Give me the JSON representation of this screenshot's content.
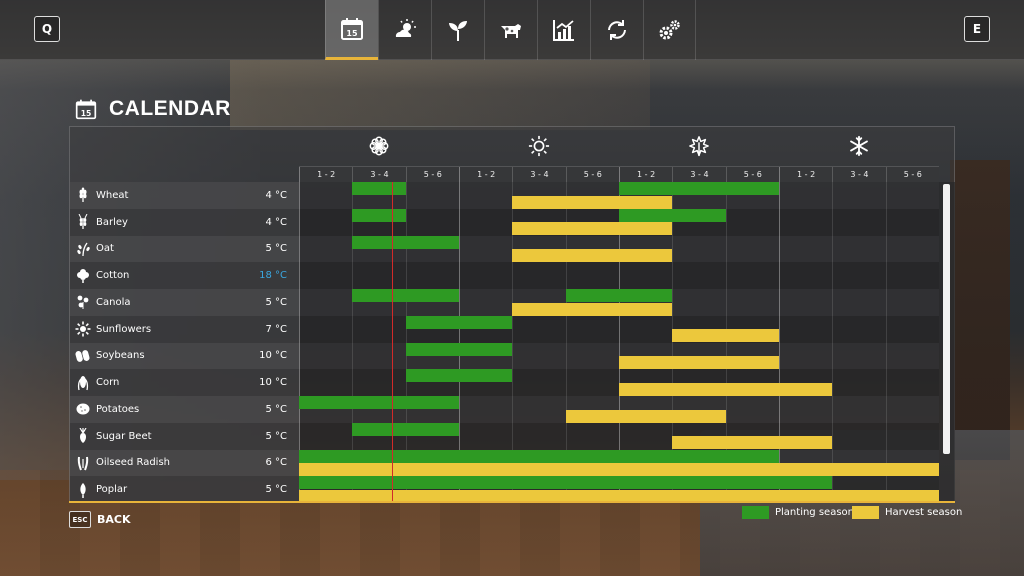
{
  "nav": {
    "left_key": "Q",
    "right_key": "E",
    "tabs": [
      {
        "icon": "calendar-icon",
        "label": "15",
        "active": true
      },
      {
        "icon": "weather-icon",
        "active": false
      },
      {
        "icon": "plant-icon",
        "active": false
      },
      {
        "icon": "cow-icon",
        "active": false
      },
      {
        "icon": "stats-icon",
        "active": false
      },
      {
        "icon": "contracts-icon",
        "active": false
      },
      {
        "icon": "settings-icon",
        "active": false
      }
    ]
  },
  "title": "CALENDAR",
  "title_icon_number": "15",
  "seasons": [
    {
      "name": "spring",
      "icon": "flower-icon"
    },
    {
      "name": "summer",
      "icon": "sun-icon"
    },
    {
      "name": "autumn",
      "icon": "leaf-icon"
    },
    {
      "name": "winter",
      "icon": "snowflake-icon"
    }
  ],
  "periods": [
    "1 - 2",
    "3 - 4",
    "5 - 6",
    "1 - 2",
    "3 - 4",
    "5 - 6",
    "1 - 2",
    "3 - 4",
    "5 - 6",
    "1 - 2",
    "3 - 4",
    "5 - 6"
  ],
  "crops": [
    {
      "name": "Wheat",
      "temp": "4 °C",
      "icon": "wheat-icon",
      "plant": [
        [
          1,
          2
        ],
        [
          6,
          9
        ]
      ],
      "harvest": [
        [
          4,
          7
        ]
      ]
    },
    {
      "name": "Barley",
      "temp": "4 °C",
      "icon": "barley-icon",
      "plant": [
        [
          1,
          2
        ],
        [
          6,
          8
        ]
      ],
      "harvest": [
        [
          4,
          7
        ]
      ]
    },
    {
      "name": "Oat",
      "temp": "5 °C",
      "icon": "oat-icon",
      "plant": [
        [
          1,
          3
        ]
      ],
      "harvest": [
        [
          4,
          7
        ]
      ]
    },
    {
      "name": "Cotton",
      "temp": "18 °C",
      "cold": true,
      "icon": "cotton-icon",
      "plant": [],
      "harvest": []
    },
    {
      "name": "Canola",
      "temp": "5 °C",
      "icon": "canola-icon",
      "plant": [
        [
          1,
          3
        ],
        [
          5,
          7
        ]
      ],
      "harvest": [
        [
          4,
          7
        ]
      ]
    },
    {
      "name": "Sunflowers",
      "temp": "7 °C",
      "icon": "sunflower-icon",
      "plant": [
        [
          2,
          4
        ]
      ],
      "harvest": [
        [
          7,
          9
        ]
      ]
    },
    {
      "name": "Soybeans",
      "temp": "10 °C",
      "icon": "soybean-icon",
      "plant": [
        [
          2,
          4
        ]
      ],
      "harvest": [
        [
          6,
          9
        ]
      ]
    },
    {
      "name": "Corn",
      "temp": "10 °C",
      "icon": "corn-icon",
      "plant": [
        [
          2,
          4
        ]
      ],
      "harvest": [
        [
          6,
          10
        ]
      ]
    },
    {
      "name": "Potatoes",
      "temp": "5 °C",
      "icon": "potato-icon",
      "plant": [
        [
          0,
          3
        ]
      ],
      "harvest": [
        [
          5,
          8
        ]
      ]
    },
    {
      "name": "Sugar Beet",
      "temp": "5 °C",
      "icon": "sugarbeet-icon",
      "plant": [
        [
          1,
          3
        ]
      ],
      "harvest": [
        [
          7,
          10
        ]
      ]
    },
    {
      "name": "Oilseed Radish",
      "temp": "6 °C",
      "icon": "radish-icon",
      "plant": [
        [
          0,
          9
        ]
      ],
      "harvest": [
        [
          0,
          12
        ]
      ]
    },
    {
      "name": "Poplar",
      "temp": "5 °C",
      "icon": "poplar-icon",
      "plant": [
        [
          0,
          10
        ]
      ],
      "harvest": [
        [
          0,
          12
        ]
      ]
    }
  ],
  "current_period_position": 1.75,
  "colors": {
    "planting": "#2e9a23",
    "harvest": "#ecc83c",
    "accent": "#e8b43a",
    "today": "#d22a2a",
    "cold_temp": "#3aa7e0"
  },
  "footer": {
    "esc_key": "ESC",
    "back_label": "BACK",
    "legend_planting": "Planting season",
    "legend_harvest": "Harvest season"
  }
}
